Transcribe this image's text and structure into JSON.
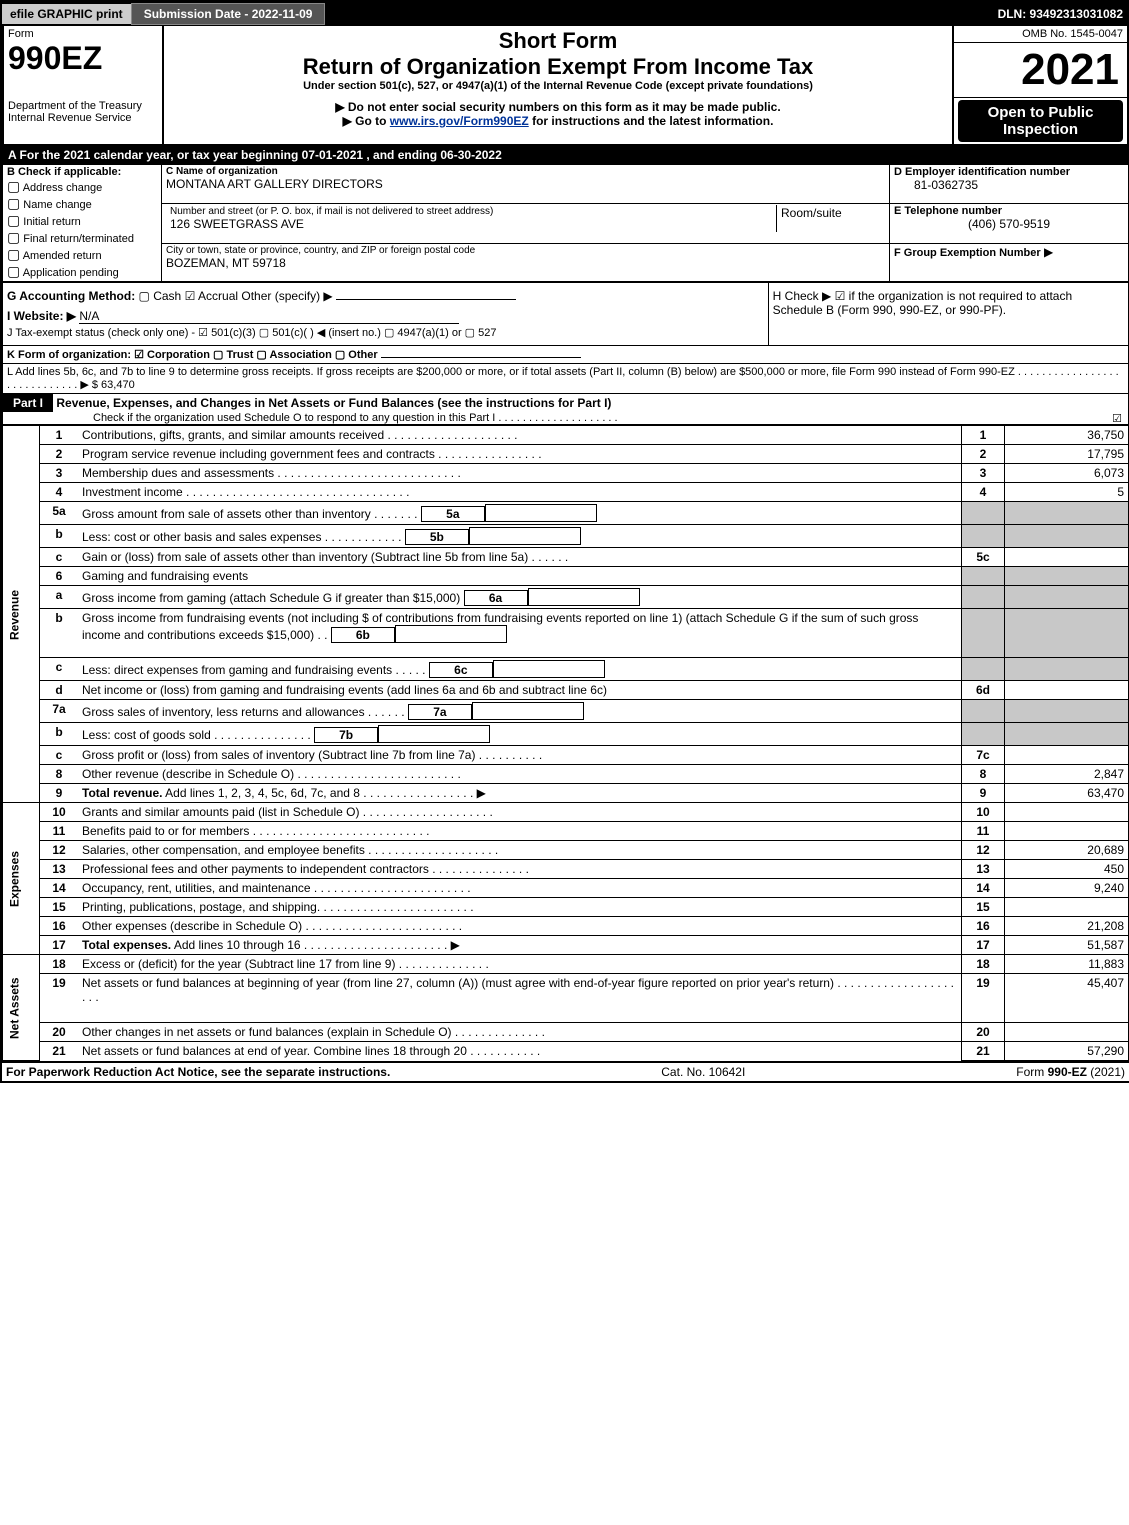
{
  "top": {
    "efile": "efile GRAPHIC print",
    "submission_label": "Submission Date - 2022-11-09",
    "dln_label": "DLN: 93492313031082"
  },
  "header": {
    "form_word": "Form",
    "form_number": "990EZ",
    "dept1": "Department of the Treasury",
    "dept2": "Internal Revenue Service",
    "short_form": "Short Form",
    "return_title": "Return of Organization Exempt From Income Tax",
    "under_section": "Under section 501(c), 527, or 4947(a)(1) of the Internal Revenue Code (except private foundations)",
    "no_ssn": "▶ Do not enter social security numbers on this form as it may be made public.",
    "go_to_pre": "▶ Go to ",
    "go_to_link": "www.irs.gov/Form990EZ",
    "go_to_post": " for instructions and the latest information.",
    "omb": "OMB No. 1545-0047",
    "year": "2021",
    "open_public": "Open to Public Inspection"
  },
  "lineA": "A  For the 2021 calendar year, or tax year beginning 07-01-2021 , and ending 06-30-2022",
  "boxB": {
    "title": "B  Check if applicable:",
    "items": [
      "Address change",
      "Name change",
      "Initial return",
      "Final return/terminated",
      "Amended return",
      "Application pending"
    ]
  },
  "boxC": {
    "name_label": "C Name of organization",
    "name_val": "MONTANA ART GALLERY DIRECTORS",
    "street_label": "Number and street (or P. O. box, if mail is not delivered to street address)",
    "room_label": "Room/suite",
    "street_val": "126 SWEETGRASS AVE",
    "city_label": "City or town, state or province, country, and ZIP or foreign postal code",
    "city_val": "BOZEMAN, MT  59718"
  },
  "boxD": {
    "label": "D Employer identification number",
    "val": "81-0362735"
  },
  "boxE": {
    "label": "E Telephone number",
    "val": "(406) 570-9519"
  },
  "boxF": {
    "label": "F Group Exemption Number",
    "arrow": "▶"
  },
  "lineG": {
    "label": "G Accounting Method:",
    "cash": "Cash",
    "accrual": "Accrual",
    "other": "Other (specify) ▶"
  },
  "lineH": "H   Check ▶ ☑ if the organization is not required to attach Schedule B (Form 990, 990-EZ, or 990-PF).",
  "lineI": {
    "label": "I Website: ▶",
    "val": "N/A"
  },
  "lineJ": "J Tax-exempt status (check only one) - ☑ 501(c)(3)  ▢ 501(c)(  ) ◀ (insert no.)  ▢ 4947(a)(1) or  ▢ 527",
  "lineK": "K Form of organization:  ☑ Corporation   ▢ Trust   ▢ Association   ▢ Other",
  "lineL": {
    "text": "L Add lines 5b, 6c, and 7b to line 9 to determine gross receipts. If gross receipts are $200,000 or more, or if total assets (Part II, column (B) below) are $500,000 or more, file Form 990 instead of Form 990-EZ  .   .   .   .   .   .   .   .   .   .   .   .   .   .   .   .   .   .   .   .   .   .   .   .   .   .   .   .   .  ▶ $",
    "amount": "63,470"
  },
  "partI": {
    "label": "Part I",
    "title": "Revenue, Expenses, and Changes in Net Assets or Fund Balances (see the instructions for Part I)",
    "check_line": "Check if the organization used Schedule O to respond to any question in this Part I  .   .   .   .   .   .   .   .   .   .   .   .   .   .   .   .   .   .   .   .",
    "checked": "☑"
  },
  "sections": {
    "revenue_label": "Revenue",
    "expenses_label": "Expenses",
    "netassets_label": "Net Assets"
  },
  "lines": [
    {
      "no": "1",
      "desc": "Contributions, gifts, grants, and similar amounts received  .   .   .   .   .   .   .   .   .   .   .   .   .   .   .   .   .   .   .   .",
      "ref": "1",
      "amt": "36,750"
    },
    {
      "no": "2",
      "desc": "Program service revenue including government fees and contracts  .   .   .   .   .   .   .   .   .   .   .   .   .   .   .   .",
      "ref": "2",
      "amt": "17,795"
    },
    {
      "no": "3",
      "desc": "Membership dues and assessments  .   .   .   .   .   .   .   .   .   .   .   .   .   .   .   .   .   .   .   .   .   .   .   .   .   .   .   .",
      "ref": "3",
      "amt": "6,073"
    },
    {
      "no": "4",
      "desc": "Investment income  .   .   .   .   .   .   .   .   .   .   .   .   .   .   .   .   .   .   .   .   .   .   .   .   .   .   .   .   .   .   .   .   .   .",
      "ref": "4",
      "amt": "5"
    },
    {
      "no": "5a",
      "desc": "Gross amount from sale of assets other than inventory  .   .   .   .   .   .   .",
      "sub": "5a",
      "gray": true
    },
    {
      "no": "b",
      "desc": "Less: cost or other basis and sales expenses  .   .   .   .   .   .   .   .   .   .   .   .",
      "sub": "5b",
      "gray": true
    },
    {
      "no": "c",
      "desc": "Gain or (loss) from sale of assets other than inventory (Subtract line 5b from line 5a)   .   .   .   .   .   .",
      "ref": "5c",
      "amt": ""
    },
    {
      "no": "6",
      "desc": "Gaming and fundraising events",
      "gray_full": true
    },
    {
      "no": "a",
      "desc": "Gross income from gaming (attach Schedule G if greater than $15,000)",
      "sub": "6a",
      "gray": true
    },
    {
      "no": "b",
      "desc": "Gross income from fundraising events (not including $                         of contributions from fundraising events reported on line 1) (attach Schedule G if the sum of such gross income and contributions exceeds $15,000)    .  .",
      "sub": "6b",
      "gray": true,
      "tall": true
    },
    {
      "no": "c",
      "desc": "Less: direct expenses from gaming and fundraising events    .   .   .   .   .",
      "sub": "6c",
      "gray": true
    },
    {
      "no": "d",
      "desc": "Net income or (loss) from gaming and fundraising events (add lines 6a and 6b and subtract line 6c)",
      "ref": "6d",
      "amt": ""
    },
    {
      "no": "7a",
      "desc": "Gross sales of inventory, less returns and allowances  .   .   .   .   .   .",
      "sub": "7a",
      "gray": true
    },
    {
      "no": "b",
      "desc": "Less: cost of goods sold           .   .   .   .   .   .   .   .   .   .   .   .   .   .   .",
      "sub": "7b",
      "gray": true
    },
    {
      "no": "c",
      "desc": "Gross profit or (loss) from sales of inventory (Subtract line 7b from line 7a)   .   .   .   .   .   .   .   .   .   .",
      "ref": "7c",
      "amt": ""
    },
    {
      "no": "8",
      "desc": "Other revenue (describe in Schedule O)  .   .   .   .   .   .   .   .   .   .   .   .   .   .   .   .   .   .   .   .   .   .   .   .   .",
      "ref": "8",
      "amt": "2,847"
    },
    {
      "no": "9",
      "desc_bold": "Total revenue.",
      "desc": " Add lines 1, 2, 3, 4, 5c, 6d, 7c, and 8   .   .   .   .   .   .   .   .   .   .   .   .   .   .   .   .   .    ▶",
      "ref": "9",
      "amt": "63,470",
      "section_end": "revenue"
    }
  ],
  "exp_lines": [
    {
      "no": "10",
      "desc": "Grants and similar amounts paid (list in Schedule O)  .   .   .   .   .   .   .   .   .   .   .   .   .   .   .   .   .   .   .   .",
      "ref": "10",
      "amt": ""
    },
    {
      "no": "11",
      "desc": "Benefits paid to or for members      .   .   .   .   .   .   .   .   .   .   .   .   .   .   .   .   .   .   .   .   .   .   .   .   .   .   .",
      "ref": "11",
      "amt": ""
    },
    {
      "no": "12",
      "desc": "Salaries, other compensation, and employee benefits .   .   .   .   .   .   .   .   .   .   .   .   .   .   .   .   .   .   .   .",
      "ref": "12",
      "amt": "20,689"
    },
    {
      "no": "13",
      "desc": "Professional fees and other payments to independent contractors  .   .   .   .   .   .   .   .   .   .   .   .   .   .   .",
      "ref": "13",
      "amt": "450"
    },
    {
      "no": "14",
      "desc": "Occupancy, rent, utilities, and maintenance .   .   .   .   .   .   .   .   .   .   .   .   .   .   .   .   .   .   .   .   .   .   .   .",
      "ref": "14",
      "amt": "9,240"
    },
    {
      "no": "15",
      "desc": "Printing, publications, postage, and shipping.   .   .   .   .   .   .   .   .   .   .   .   .   .   .   .   .   .   .   .   .   .   .   .",
      "ref": "15",
      "amt": ""
    },
    {
      "no": "16",
      "desc": "Other expenses (describe in Schedule O)     .   .   .   .   .   .   .   .   .   .   .   .   .   .   .   .   .   .   .   .   .   .   .   .",
      "ref": "16",
      "amt": "21,208"
    },
    {
      "no": "17",
      "desc_bold": "Total expenses.",
      "desc": " Add lines 10 through 16     .   .   .   .   .   .   .   .   .   .   .   .   .   .   .   .   .   .   .   .   .   .    ▶",
      "ref": "17",
      "amt": "51,587",
      "section_end": "expenses"
    }
  ],
  "net_lines": [
    {
      "no": "18",
      "desc": "Excess or (deficit) for the year (Subtract line 17 from line 9)        .   .   .   .   .   .   .   .   .   .   .   .   .   .",
      "ref": "18",
      "amt": "11,883"
    },
    {
      "no": "19",
      "desc": "Net assets or fund balances at beginning of year (from line 27, column (A)) (must agree with end-of-year figure reported on prior year's return) .   .   .   .   .   .   .   .   .   .   .   .   .   .   .   .   .   .   .   .   .",
      "ref": "19",
      "amt": "45,407",
      "tall": true
    },
    {
      "no": "20",
      "desc": "Other changes in net assets or fund balances (explain in Schedule O) .   .   .   .   .   .   .   .   .   .   .   .   .   .",
      "ref": "20",
      "amt": ""
    },
    {
      "no": "21",
      "desc": "Net assets or fund balances at end of year. Combine lines 18 through 20 .   .   .   .   .   .   .   .   .   .   .",
      "ref": "21",
      "amt": "57,290"
    }
  ],
  "footer": {
    "left": "For Paperwork Reduction Act Notice, see the separate instructions.",
    "mid": "Cat. No. 10642I",
    "right_pre": "Form ",
    "right_form": "990-EZ",
    "right_post": " (2021)"
  }
}
